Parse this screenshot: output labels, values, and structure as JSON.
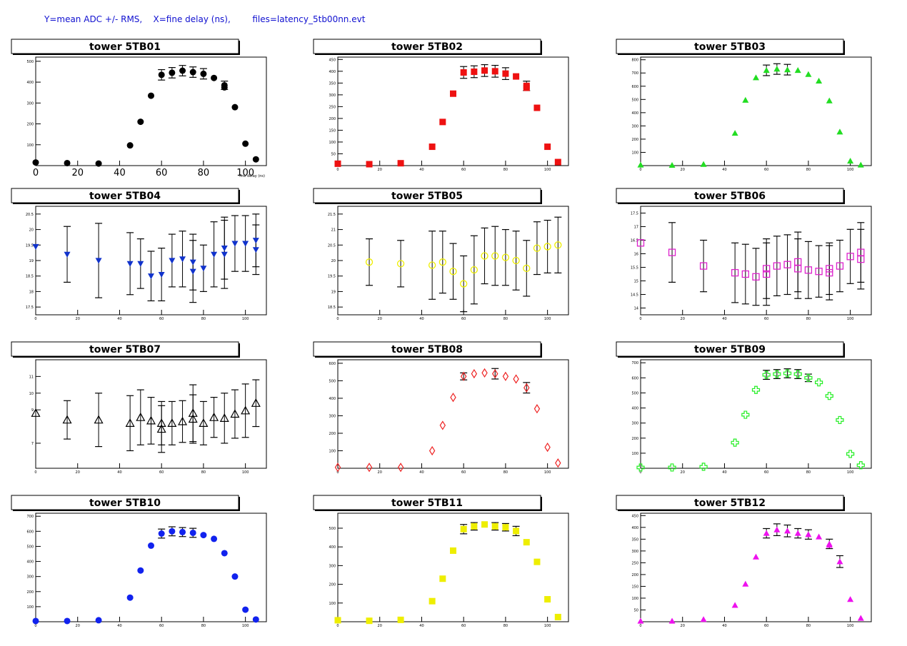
{
  "header": {
    "ylabel_part": "Y=mean ADC +/- RMS,",
    "xlabel_part": "X=fine delay (ns),",
    "files_part": "files=latency_5tb00nn.evt"
  },
  "chart_data": [
    {
      "type": "scatter",
      "title": "tower 5TB01",
      "color": "#000000",
      "marker": "circle",
      "xlim": [
        0,
        110
      ],
      "ylim": [
        0,
        520
      ],
      "yticks": [
        100,
        200,
        300,
        400,
        500
      ],
      "xticks": [
        "0",
        "20",
        "40",
        "60",
        "80",
        "100"
      ],
      "xlabel": "fine delay (ns)",
      "x": [
        0,
        15,
        30,
        45,
        50,
        55,
        60,
        65,
        70,
        75,
        80,
        85,
        90,
        90,
        95,
        100,
        105
      ],
      "y": [
        15,
        12,
        10,
        97,
        210,
        335,
        435,
        445,
        455,
        448,
        440,
        420,
        385,
        375,
        280,
        105,
        30
      ],
      "err": [
        0,
        0,
        0,
        0,
        0,
        0,
        25,
        25,
        25,
        25,
        25,
        0,
        20,
        0,
        0,
        0,
        0
      ]
    },
    {
      "type": "scatter",
      "title": "tower 5TB02",
      "color": "#ee1111",
      "marker": "square",
      "xlim": [
        0,
        110
      ],
      "ylim": [
        0,
        460
      ],
      "yticks": [
        50,
        100,
        150,
        200,
        250,
        300,
        350,
        400,
        450
      ],
      "xticks": [
        "0",
        "20",
        "40",
        "60",
        "80",
        "100"
      ],
      "x": [
        0,
        15,
        30,
        45,
        50,
        55,
        60,
        65,
        70,
        75,
        80,
        85,
        90,
        90,
        95,
        100,
        105
      ],
      "y": [
        8,
        6,
        10,
        80,
        185,
        305,
        395,
        398,
        403,
        400,
        390,
        378,
        338,
        330,
        245,
        80,
        15
      ],
      "err": [
        0,
        0,
        0,
        0,
        0,
        0,
        25,
        25,
        25,
        25,
        25,
        0,
        20,
        0,
        0,
        0,
        0
      ]
    },
    {
      "type": "scatter",
      "title": "tower 5TB03",
      "color": "#22dd22",
      "marker": "triangle",
      "xlim": [
        0,
        110
      ],
      "ylim": [
        0,
        820
      ],
      "yticks": [
        100,
        200,
        300,
        400,
        500,
        600,
        700,
        800
      ],
      "xticks": [
        "0",
        "20",
        "40",
        "60",
        "80",
        "100"
      ],
      "x": [
        0,
        15,
        30,
        45,
        50,
        55,
        60,
        65,
        70,
        75,
        80,
        85,
        90,
        95,
        100,
        105
      ],
      "y": [
        5,
        3,
        10,
        245,
        495,
        665,
        720,
        730,
        725,
        720,
        690,
        640,
        490,
        255,
        35,
        5
      ],
      "err": [
        0,
        0,
        0,
        0,
        0,
        0,
        40,
        40,
        40,
        0,
        0,
        0,
        0,
        0,
        0,
        0
      ]
    },
    {
      "type": "scatter",
      "title": "tower 5TB04",
      "color": "#1133cc",
      "marker": "triangle-down",
      "xlim": [
        0,
        110
      ],
      "ylim": [
        17.25,
        20.75
      ],
      "yticks": [
        17.5,
        18,
        18.5,
        19,
        19.5,
        20,
        20.5
      ],
      "xticks": [
        "0",
        "20",
        "40",
        "60",
        "80",
        "100"
      ],
      "x": [
        0,
        15,
        30,
        45,
        50,
        55,
        60,
        65,
        70,
        75,
        75,
        80,
        85,
        90,
        90,
        95,
        100,
        105,
        105
      ],
      "y": [
        19.45,
        19.2,
        19.0,
        18.9,
        18.9,
        18.5,
        18.55,
        19.0,
        19.05,
        18.95,
        18.65,
        18.75,
        19.2,
        19.2,
        19.4,
        19.55,
        19.55,
        19.65,
        19.35
      ],
      "err": [
        0,
        0.9,
        1.2,
        1.0,
        0.8,
        0.8,
        0.85,
        0.85,
        0.9,
        0.9,
        1.0,
        0.75,
        1.05,
        1.1,
        1.0,
        0.9,
        0.9,
        0.85,
        0.8
      ]
    },
    {
      "type": "scatter",
      "title": "tower 5TB05",
      "color": "#eeee00",
      "marker": "circle-open",
      "xlim": [
        0,
        110
      ],
      "ylim": [
        18.25,
        21.75
      ],
      "yticks": [
        18.5,
        19,
        19.5,
        20,
        20.5,
        21,
        21.5
      ],
      "xticks": [
        "0",
        "20",
        "40",
        "60",
        "80",
        "100"
      ],
      "x": [
        15,
        30,
        45,
        50,
        55,
        60,
        65,
        70,
        75,
        80,
        85,
        90,
        95,
        100,
        105
      ],
      "y": [
        19.95,
        19.9,
        19.85,
        19.95,
        19.65,
        19.25,
        19.7,
        20.15,
        20.15,
        20.1,
        20.0,
        19.75,
        20.4,
        20.45,
        20.5
      ],
      "err": [
        0.75,
        0.75,
        1.1,
        1.0,
        0.9,
        0.9,
        1.1,
        0.9,
        0.95,
        0.9,
        0.95,
        0.9,
        0.85,
        0.85,
        0.9
      ]
    },
    {
      "type": "scatter",
      "title": "tower 5TB06",
      "color": "#dd22cc",
      "marker": "square-open",
      "xlim": [
        0,
        110
      ],
      "ylim": [
        13.75,
        17.75
      ],
      "yticks": [
        14,
        14.5,
        15,
        15.5,
        16,
        16.5,
        17,
        17.5
      ],
      "xticks": [
        "0",
        "20",
        "40",
        "60",
        "80",
        "100"
      ],
      "x": [
        0,
        15,
        30,
        45,
        50,
        55,
        60,
        60,
        65,
        70,
        75,
        75,
        80,
        85,
        90,
        90,
        95,
        100,
        105,
        105
      ],
      "y": [
        16.4,
        16.05,
        15.55,
        15.3,
        15.25,
        15.15,
        15.25,
        15.45,
        15.55,
        15.6,
        15.7,
        15.45,
        15.4,
        15.35,
        15.45,
        15.3,
        15.55,
        15.9,
        15.8,
        16.05
      ],
      "err": [
        0,
        1.1,
        0.95,
        1.1,
        1.1,
        1.05,
        1.15,
        1.1,
        1.1,
        1.1,
        1.1,
        1.1,
        1.05,
        0.95,
        0.95,
        1.0,
        0.95,
        1.0,
        1.1,
        1.1
      ]
    },
    {
      "type": "scatter",
      "title": "tower 5TB07",
      "color": "#000000",
      "marker": "triangle-open",
      "xlim": [
        0,
        110
      ],
      "ylim": [
        5.5,
        12.0
      ],
      "yticks": [
        7,
        9,
        10,
        11
      ],
      "xticks": [
        "0",
        "20",
        "40",
        "60",
        "80",
        "100"
      ],
      "x": [
        0,
        15,
        30,
        45,
        50,
        55,
        60,
        60,
        65,
        70,
        75,
        75,
        80,
        85,
        90,
        95,
        100,
        105
      ],
      "y": [
        8.8,
        8.4,
        8.4,
        8.2,
        8.55,
        8.35,
        8.2,
        7.85,
        8.2,
        8.3,
        8.8,
        8.45,
        8.2,
        8.55,
        8.5,
        8.75,
        8.95,
        9.4
      ],
      "err": [
        0,
        1.15,
        1.6,
        1.65,
        1.65,
        1.4,
        1.3,
        1.4,
        1.3,
        1.25,
        1.7,
        1.45,
        1.3,
        1.2,
        1.5,
        1.45,
        1.6,
        1.4
      ]
    },
    {
      "type": "scatter",
      "title": "tower 5TB08",
      "color": "#ee2222",
      "marker": "diamond-open",
      "xlim": [
        0,
        110
      ],
      "ylim": [
        0,
        620
      ],
      "yticks": [
        100,
        200,
        300,
        400,
        500,
        600
      ],
      "xticks": [
        "0",
        "20",
        "40",
        "60",
        "80",
        "100"
      ],
      "x": [
        0,
        15,
        30,
        45,
        50,
        55,
        60,
        65,
        70,
        75,
        80,
        85,
        90,
        95,
        100,
        105
      ],
      "y": [
        5,
        5,
        5,
        100,
        245,
        405,
        525,
        540,
        545,
        540,
        525,
        510,
        460,
        340,
        120,
        30
      ],
      "err": [
        0,
        0,
        0,
        0,
        0,
        0,
        20,
        0,
        0,
        30,
        0,
        0,
        30,
        0,
        0,
        0
      ]
    },
    {
      "type": "scatter",
      "title": "tower 5TB09",
      "color": "#22ee22",
      "marker": "cross-open",
      "xlim": [
        0,
        110
      ],
      "ylim": [
        0,
        720
      ],
      "yticks": [
        100,
        200,
        300,
        400,
        500,
        600,
        700
      ],
      "xticks": [
        "0",
        "20",
        "40",
        "60",
        "80",
        "100"
      ],
      "x": [
        0,
        15,
        30,
        45,
        50,
        55,
        60,
        65,
        70,
        75,
        80,
        85,
        90,
        95,
        100,
        105
      ],
      "y": [
        5,
        5,
        10,
        170,
        355,
        520,
        620,
        625,
        630,
        625,
        600,
        570,
        480,
        320,
        95,
        20
      ],
      "err": [
        0,
        0,
        0,
        0,
        0,
        0,
        30,
        30,
        30,
        30,
        25,
        0,
        0,
        0,
        0,
        0
      ]
    },
    {
      "type": "scatter",
      "title": "tower 5TB10",
      "color": "#1122ee",
      "marker": "circle",
      "xlim": [
        0,
        110
      ],
      "ylim": [
        0,
        720
      ],
      "yticks": [
        100,
        200,
        300,
        400,
        500,
        600,
        700
      ],
      "xticks": [
        "0",
        "20",
        "40",
        "60",
        "80",
        "100"
      ],
      "x": [
        0,
        15,
        30,
        45,
        50,
        55,
        60,
        65,
        70,
        75,
        80,
        85,
        90,
        95,
        100,
        105
      ],
      "y": [
        5,
        5,
        10,
        160,
        340,
        505,
        585,
        600,
        595,
        590,
        575,
        550,
        455,
        300,
        80,
        15
      ],
      "err": [
        0,
        0,
        0,
        0,
        0,
        0,
        30,
        30,
        30,
        30,
        0,
        0,
        0,
        0,
        0,
        0
      ]
    },
    {
      "type": "scatter",
      "title": "tower 5TB11",
      "color": "#eeee00",
      "marker": "square",
      "xlim": [
        0,
        110
      ],
      "ylim": [
        0,
        580
      ],
      "yticks": [
        100,
        200,
        300,
        400,
        500
      ],
      "xticks": [
        "0",
        "20",
        "40",
        "60",
        "80",
        "100"
      ],
      "x": [
        0,
        15,
        30,
        45,
        50,
        55,
        60,
        65,
        70,
        75,
        80,
        85,
        90,
        95,
        100,
        105
      ],
      "y": [
        8,
        5,
        10,
        110,
        230,
        380,
        495,
        510,
        520,
        510,
        505,
        485,
        425,
        320,
        120,
        25
      ],
      "err": [
        0,
        0,
        0,
        0,
        0,
        0,
        25,
        20,
        0,
        20,
        20,
        25,
        0,
        0,
        0,
        0
      ]
    },
    {
      "type": "scatter",
      "title": "tower 5TB12",
      "color": "#ee11ee",
      "marker": "triangle",
      "xlim": [
        0,
        110
      ],
      "ylim": [
        0,
        460
      ],
      "yticks": [
        50,
        100,
        150,
        200,
        250,
        300,
        350,
        400,
        450
      ],
      "xticks": [
        "0",
        "20",
        "40",
        "60",
        "80",
        "100"
      ],
      "x": [
        0,
        15,
        30,
        45,
        50,
        55,
        60,
        65,
        70,
        75,
        80,
        85,
        90,
        90,
        95,
        100,
        105
      ],
      "y": [
        3,
        3,
        10,
        70,
        160,
        275,
        375,
        390,
        385,
        375,
        370,
        360,
        330,
        325,
        255,
        95,
        15
      ],
      "err": [
        0,
        0,
        0,
        0,
        0,
        0,
        20,
        25,
        25,
        20,
        20,
        0,
        20,
        0,
        25,
        0,
        0
      ]
    }
  ]
}
